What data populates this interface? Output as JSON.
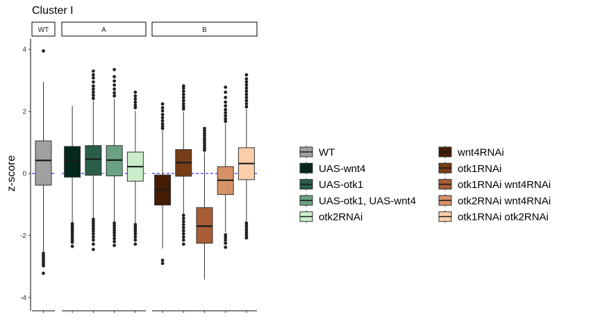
{
  "chart_data": {
    "type": "boxplot",
    "title": "Cluster I",
    "ylabel": "z-score",
    "xlabel": "",
    "ylim": [
      -4.4,
      4.35
    ],
    "yticks": [
      -4,
      -2,
      0,
      2,
      4
    ],
    "reference_line": {
      "y": 0,
      "color": "#0000ff",
      "style": "dashed"
    },
    "panels": [
      {
        "label": "WT",
        "groups": [
          "WT"
        ]
      },
      {
        "label": "A",
        "groups": [
          "UAS-wnt4",
          "UAS-otk1",
          "UAS-otk1, UAS-wnt4",
          "otk2RNAi"
        ]
      },
      {
        "label": "B",
        "groups": [
          "wnt4RNAi",
          "otk1RNAi",
          "otk1RNAi wnt4RNAi",
          "otk2RNAi wnt4RNAi",
          "otk1RNAi otk2RNAi"
        ]
      }
    ],
    "series": [
      {
        "name": "WT",
        "color": "#a0a0a0",
        "panel": "WT",
        "q1": -0.38,
        "median": 0.42,
        "q3": 1.05,
        "whisker_low": -2.6,
        "whisker_high": 2.95,
        "outliers": [
          3.95,
          -2.58,
          -2.65,
          -2.72,
          -2.78,
          -2.85,
          -2.92,
          -2.98,
          -3.22
        ]
      },
      {
        "name": "UAS-wnt4",
        "color": "#04281e",
        "panel": "A",
        "q1": -0.12,
        "median": 0.42,
        "q3": 0.87,
        "whisker_low": -1.6,
        "whisker_high": 2.18,
        "outliers": [
          -1.62,
          -1.68,
          -1.74,
          -1.8,
          -1.86,
          -1.93,
          -2.0,
          -2.08,
          -2.15,
          -2.22,
          -2.35
        ]
      },
      {
        "name": "UAS-otk1",
        "color": "#2a5e48",
        "panel": "A",
        "q1": -0.06,
        "median": 0.46,
        "q3": 0.9,
        "whisker_low": -1.45,
        "whisker_high": 2.35,
        "outliers": [
          2.42,
          2.52,
          2.62,
          2.72,
          2.82,
          2.95,
          3.08,
          3.18,
          3.3,
          -1.48,
          -1.55,
          -1.62,
          -1.7,
          -1.78,
          -1.86,
          -1.95,
          -2.05,
          -2.15,
          -2.28,
          -2.45
        ]
      },
      {
        "name": "UAS-otk1, UAS-wnt4",
        "color": "#6aa283",
        "panel": "A",
        "q1": -0.08,
        "median": 0.43,
        "q3": 0.9,
        "whisker_low": -1.55,
        "whisker_high": 2.4,
        "outliers": [
          2.5,
          2.6,
          2.72,
          2.85,
          2.98,
          3.12,
          3.35,
          -1.6,
          -1.68,
          -1.76,
          -1.84,
          -1.92,
          -2.0,
          -2.1,
          -2.2,
          -2.32
        ]
      },
      {
        "name": "otk2RNAi",
        "color": "#c9edca",
        "panel": "A",
        "q1": -0.25,
        "median": 0.22,
        "q3": 0.69,
        "whisker_low": -1.6,
        "whisker_high": 2.02,
        "outliers": [
          2.12,
          2.2,
          2.3,
          2.4,
          2.5,
          2.62,
          -1.65,
          -1.72,
          -1.8,
          -1.88,
          -1.96,
          -2.05,
          -2.15,
          -2.28
        ]
      },
      {
        "name": "wnt4RNAi",
        "color": "#431c03",
        "panel": "B",
        "q1": -1.02,
        "median": -0.52,
        "q3": -0.05,
        "whisker_low": -2.42,
        "whisker_high": 1.38,
        "outliers": [
          1.45,
          1.52,
          1.6,
          1.7,
          1.8,
          1.9,
          2.02,
          2.12,
          2.24,
          -2.8,
          -2.9
        ]
      },
      {
        "name": "otk1RNAi",
        "color": "#773d17",
        "panel": "B",
        "q1": -0.09,
        "median": 0.35,
        "q3": 0.77,
        "whisker_low": -1.3,
        "whisker_high": 2.0,
        "outliers": [
          2.08,
          2.16,
          2.25,
          2.35,
          2.45,
          2.55,
          2.65,
          2.75,
          2.82,
          -1.35,
          -1.45,
          -1.55,
          -1.65,
          -1.75,
          -1.85,
          -1.95,
          -2.05,
          -2.15,
          -2.28
        ]
      },
      {
        "name": "otk1RNAi wnt4RNAi",
        "color": "#a85d36",
        "panel": "B",
        "q1": -2.25,
        "median": -1.7,
        "q3": -1.1,
        "whisker_low": -3.42,
        "whisker_high": 0.68,
        "outliers": [
          0.75,
          0.82,
          0.9,
          0.98,
          1.06,
          1.14,
          1.22,
          1.3,
          1.38,
          1.45
        ]
      },
      {
        "name": "otk2RNAi wnt4RNAi",
        "color": "#d69266",
        "panel": "B",
        "q1": -0.68,
        "median": -0.22,
        "q3": 0.22,
        "whisker_low": -1.9,
        "whisker_high": 1.6,
        "outliers": [
          1.68,
          1.76,
          1.86,
          1.96,
          2.06,
          2.18,
          2.3,
          2.45,
          2.62,
          2.78,
          -1.98,
          -2.06,
          -2.15,
          -2.25,
          -2.38
        ]
      },
      {
        "name": "otk1RNAi otk2RNAi",
        "color": "#fcceaa",
        "panel": "B",
        "q1": -0.2,
        "median": 0.32,
        "q3": 0.83,
        "whisker_low": -1.55,
        "whisker_high": 2.08,
        "outliers": [
          2.15,
          2.25,
          2.35,
          2.45,
          2.55,
          2.65,
          2.75,
          2.85,
          2.95,
          3.05,
          3.18,
          -1.6,
          -1.68,
          -1.76,
          -1.84,
          -1.92,
          -2.0,
          -2.08
        ]
      }
    ],
    "legend": {
      "position": "right",
      "columns": 2
    }
  }
}
